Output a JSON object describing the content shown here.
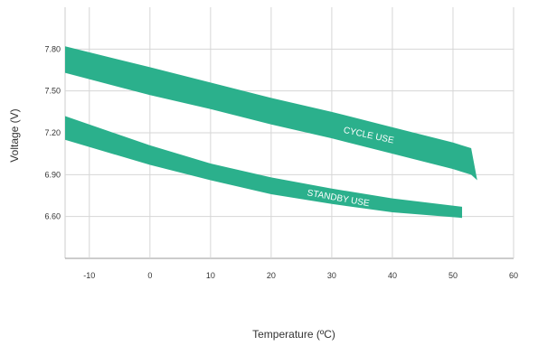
{
  "chart_data": {
    "type": "area",
    "xlabel": "Temperature (ºC)",
    "ylabel": "Voltage (V)",
    "xlim": [
      -14,
      60
    ],
    "ylim": [
      6.3,
      8.1
    ],
    "x_ticks": [
      -10,
      0,
      10,
      20,
      30,
      40,
      50,
      60
    ],
    "x_tick_labels": [
      "-10",
      "0",
      "10",
      "20",
      "30",
      "40",
      "50",
      "60"
    ],
    "y_ticks": [
      6.6,
      6.9,
      7.2,
      7.5,
      7.8
    ],
    "y_tick_labels": [
      "6.60",
      "6.90",
      "7.20",
      "7.50",
      "7.80"
    ],
    "grid": true,
    "band_color": "#2bb08c",
    "series": [
      {
        "name": "CYCLE USE",
        "x": [
          -14,
          0,
          10,
          20,
          30,
          40,
          50,
          53,
          54
        ],
        "upper": [
          7.82,
          7.67,
          7.56,
          7.45,
          7.35,
          7.24,
          7.13,
          7.09,
          6.86
        ],
        "lower": [
          7.63,
          7.47,
          7.37,
          7.26,
          7.16,
          7.05,
          6.94,
          6.9,
          6.86
        ]
      },
      {
        "name": "STANDBY USE",
        "x": [
          -14,
          0,
          10,
          20,
          30,
          40,
          51.5
        ],
        "upper": [
          7.32,
          7.11,
          6.98,
          6.88,
          6.8,
          6.73,
          6.67
        ],
        "lower": [
          7.15,
          6.97,
          6.86,
          6.76,
          6.69,
          6.63,
          6.59
        ]
      }
    ]
  }
}
